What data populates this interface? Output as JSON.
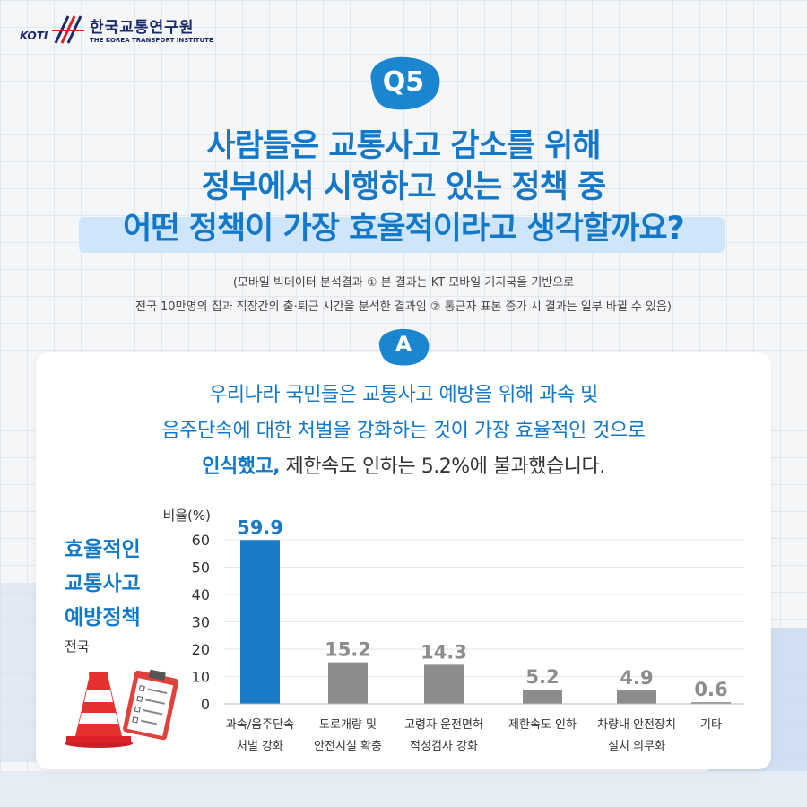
{
  "logo": {
    "abbr": "KOTI",
    "name_kr": "한국교통연구원",
    "name_en": "THE KOREA TRANSPORT INSTITUTE"
  },
  "question": {
    "badge": "Q5",
    "lines": [
      "사람들은 교통사고 감소를 위해",
      "정부에서 시행하고 있는 정책 중",
      "어떤 정책이 가장 효율적이라고 생각할까요?"
    ],
    "note_1": "(모바일 빅데이터 분석결과 ① 본 결과는 KT 모바일 기지국을 기반으로",
    "note_2": "전국 10만명의 집과 직장간의 출·퇴근 시간을 분석한 결과임 ② 통근자 표본 증가 시 결과는 일부 바뀔 수 있음)"
  },
  "answer": {
    "badge": "A",
    "line1": "우리나라 국민들은 교통사고 예방을 위해 과속 및",
    "line2": "음주단속에 대한 처벌을 강화하는 것이 가장 효율적인 것으로",
    "line3_bold": "인식했고,",
    "line3_rest": " 제한속도 인하는 5.2%에 불과했습니다."
  },
  "side": {
    "title_lines": [
      "효율적인",
      "교통사고",
      "예방정책"
    ],
    "region": "전국"
  },
  "chart_data": {
    "type": "bar",
    "ylabel": "비율(%)",
    "ylim": [
      0,
      60
    ],
    "yticks": [
      0,
      10,
      20,
      30,
      40,
      50,
      60
    ],
    "categories": [
      [
        "과속/음주단속",
        "처벌 강화"
      ],
      [
        "도로개량 및",
        "안전시설 확충"
      ],
      [
        "고령자 운전면허",
        "적성검사 강화"
      ],
      [
        "제한속도 인하"
      ],
      [
        "차량내 안전장치",
        "설치 의무화"
      ],
      [
        "기타"
      ]
    ],
    "values": [
      59.9,
      15.2,
      14.3,
      5.2,
      4.9,
      0.6
    ],
    "value_labels": [
      "59.9",
      "15.2",
      "14.3",
      "5.2",
      "4.9",
      "0.6"
    ],
    "colors": {
      "highlight": "#1a7cc8",
      "default": "#8c8c8c",
      "grid": "#e6e6e6"
    },
    "grid": true
  },
  "colors": {
    "accent": "#1478c8",
    "title_highlight": "#cfe6fa",
    "brand_red": "#d92027"
  },
  "icons": [
    "traffic-cone-icon",
    "clipboard-checklist-icon"
  ]
}
